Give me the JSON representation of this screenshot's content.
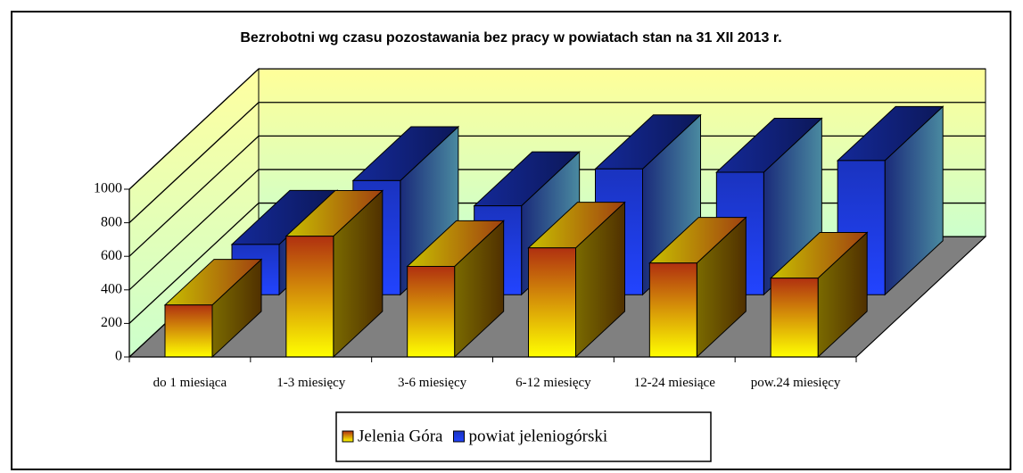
{
  "chart_data": {
    "type": "bar3d",
    "title": "Bezrobotni wg czasu pozostawania bez pracy w powiatach stan na 31 XII 2013 r.",
    "categories": [
      "do 1 miesiąca",
      "1-3 miesięcy",
      "3-6 miesięcy",
      "6-12 miesięcy",
      "12-24 miesiące",
      "pow.24 miesięcy"
    ],
    "series": [
      {
        "name": "Jelenia Góra",
        "color": "#ffff00",
        "values": [
          310,
          720,
          540,
          650,
          560,
          470
        ]
      },
      {
        "name": "powiat jeleniogórski",
        "color": "#2244ff",
        "values": [
          300,
          680,
          530,
          750,
          730,
          800
        ]
      }
    ],
    "ylim": [
      0,
      1000
    ],
    "yticks": [
      0,
      200,
      400,
      600,
      800,
      1000
    ],
    "grid": true,
    "legend": "bottom"
  }
}
